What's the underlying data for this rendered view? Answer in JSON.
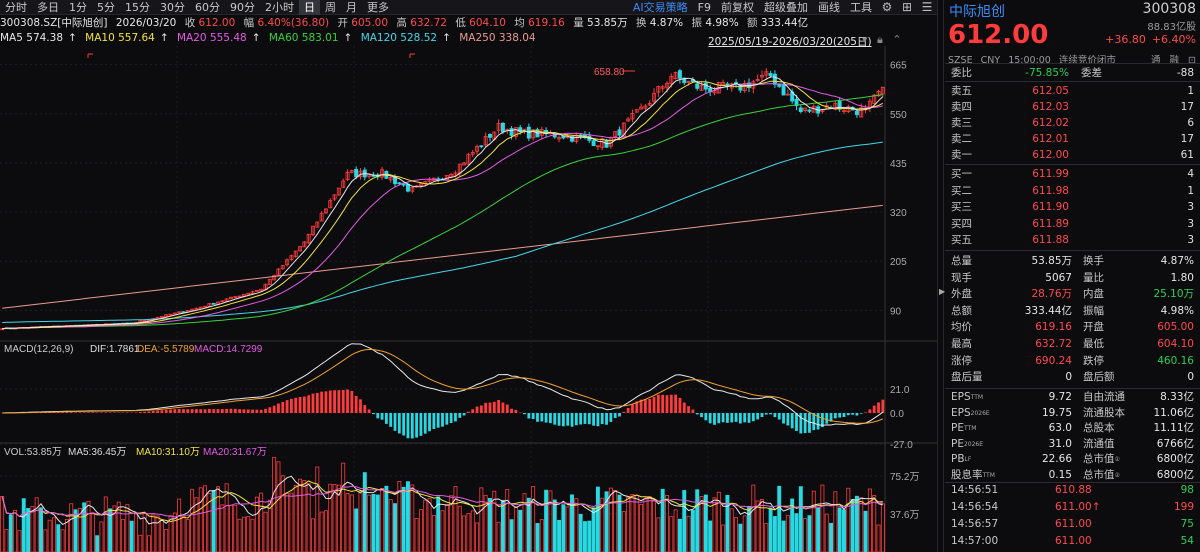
{
  "toolbar": {
    "items": [
      "分时",
      "多日",
      "1分",
      "5分",
      "15分",
      "30分",
      "60分",
      "90分",
      "2小时",
      "日",
      "周",
      "月",
      "更多"
    ],
    "active_index": 9,
    "right_items": [
      "AI交易策略",
      "F9",
      "前复权",
      "超级叠加",
      "画线",
      "工具"
    ]
  },
  "quote_line": {
    "code": "300308.SZ[中际旭创]",
    "date": "2026/03/20",
    "close_label": "收",
    "close": "612.00",
    "amp_label": "幅",
    "amp": "6.40%(36.80)",
    "open_label": "开",
    "open": "605.00",
    "high_label": "高",
    "high": "632.72",
    "low_label": "低",
    "low": "604.10",
    "avg_label": "均",
    "avg": "619.16",
    "vol_label": "量",
    "vol": "53.85万",
    "turn_label": "换",
    "turn": "4.87%",
    "swing_label": "振",
    "swing": "4.98%",
    "amt_label": "额",
    "amt": "333.44亿"
  },
  "ma_line": {
    "ma5": "MA5 574.38",
    "ma10": "MA10 557.64",
    "ma20": "MA20 555.48",
    "ma60": "MA60 583.01",
    "ma120": "MA120 528.52",
    "ma250": "MA250 338.04",
    "range": "2025/05/19-2026/03/20(205日)"
  },
  "price_axis": [
    "665",
    "550",
    "435",
    "320",
    "205",
    "90"
  ],
  "peak_label": "658.80",
  "macd": {
    "title": "MACD(12,26,9)",
    "dif": "DIF:1.7861",
    "dea": "DEA:-5.5789",
    "macd": "MACD:14.7299",
    "axis": [
      "21.0",
      "0.0",
      "-27.0"
    ]
  },
  "vol_panel": {
    "title": "VOL:53.85万",
    "ma5": "MA5:36.45万",
    "ma10": "MA10:31.10万",
    "ma20": "MA20:31.67万",
    "axis": [
      "75.2万",
      "37.6万"
    ]
  },
  "colors": {
    "up": "#ff3b3b",
    "down": "#26d9e3",
    "ma5": "#e6e6e6",
    "ma10": "#f0e33e",
    "ma20": "#e35be3",
    "ma60": "#3bd13b",
    "ma120": "#45d6e8",
    "ma250": "#e79b8f",
    "accent": "#3d8cf7"
  },
  "panel": {
    "name": "中际旭创",
    "code": "300308",
    "price": "612.00",
    "sub": "88.83亿股",
    "change": "+36.80",
    "change_pct": "+6.40%",
    "market": [
      "SZSE",
      "CNY",
      "15:00:00",
      "连续竞价闭市"
    ],
    "market_right": [
      "通",
      "融",
      "⊡"
    ],
    "weibi_label": "委比",
    "weibi": "-75.85%",
    "weicha_label": "委差",
    "weicha": "-88",
    "asks": [
      {
        "label": "卖五",
        "price": "612.05",
        "vol": "1"
      },
      {
        "label": "卖四",
        "price": "612.03",
        "vol": "17"
      },
      {
        "label": "卖三",
        "price": "612.02",
        "vol": "6"
      },
      {
        "label": "卖二",
        "price": "612.01",
        "vol": "17"
      },
      {
        "label": "卖一",
        "price": "612.00",
        "vol": "61"
      }
    ],
    "bids": [
      {
        "label": "买一",
        "price": "611.99",
        "vol": "4"
      },
      {
        "label": "买二",
        "price": "611.98",
        "vol": "1"
      },
      {
        "label": "买三",
        "price": "611.90",
        "vol": "3"
      },
      {
        "label": "买四",
        "price": "611.89",
        "vol": "3"
      },
      {
        "label": "买五",
        "price": "611.88",
        "vol": "3"
      }
    ],
    "stats": [
      {
        "k1": "总量",
        "v1": "53.85万",
        "c1": "w",
        "k2": "换手",
        "v2": "4.87%",
        "c2": "w"
      },
      {
        "k1": "现手",
        "v1": "5067",
        "c1": "w",
        "k2": "量比",
        "v2": "1.80",
        "c2": "w"
      },
      {
        "k1": "外盘",
        "v1": "28.76万",
        "c1": "r",
        "k2": "内盘",
        "v2": "25.10万",
        "c2": "g"
      },
      {
        "k1": "总额",
        "v1": "333.44亿",
        "c1": "w",
        "k2": "振幅",
        "v2": "4.98%",
        "c2": "w"
      },
      {
        "k1": "均价",
        "v1": "619.16",
        "c1": "r",
        "k2": "开盘",
        "v2": "605.00",
        "c2": "r"
      },
      {
        "k1": "最高",
        "v1": "632.72",
        "c1": "r",
        "k2": "最低",
        "v2": "604.10",
        "c2": "r"
      },
      {
        "k1": "涨停",
        "v1": "690.24",
        "c1": "r",
        "k2": "跌停",
        "v2": "460.16",
        "c2": "g"
      },
      {
        "k1": "盘后量",
        "v1": "0",
        "c1": "w",
        "k2": "盘后额",
        "v2": "0",
        "c2": "w"
      }
    ],
    "fundamentals": [
      {
        "k1": "EPS",
        "s1": "TTM",
        "v1": "9.72",
        "k2": "自由流通",
        "s2": "",
        "v2": "8.33亿"
      },
      {
        "k1": "EPS",
        "s1": "2026E",
        "v1": "19.75",
        "k2": "流通股本",
        "s2": "",
        "v2": "11.06亿"
      },
      {
        "k1": "PE",
        "s1": "TTM",
        "v1": "63.0",
        "k2": "总股本",
        "s2": "",
        "v2": "11.11亿"
      },
      {
        "k1": "PE",
        "s1": "2026E",
        "v1": "31.0",
        "k2": "流通值",
        "s2": "",
        "v2": "6766亿"
      },
      {
        "k1": "PB",
        "s1": "LF",
        "v1": "22.66",
        "k2": "总市值",
        "s2": "①",
        "v2": "6800亿"
      },
      {
        "k1": "股息率",
        "s1": "TTM",
        "v1": "0.15",
        "k2": "总市值",
        "s2": "②",
        "v2": "6800亿"
      }
    ],
    "ticks": [
      {
        "time": "14:56:51",
        "price": "610.88",
        "vol": "98",
        "c": "g"
      },
      {
        "time": "14:56:54",
        "price": "611.00↑",
        "vol": "199",
        "c": "r"
      },
      {
        "time": "14:56:57",
        "price": "611.00",
        "vol": "75",
        "c": "g"
      },
      {
        "time": "14:57:00",
        "price": "611.00",
        "vol": "54",
        "c": "g"
      }
    ]
  }
}
